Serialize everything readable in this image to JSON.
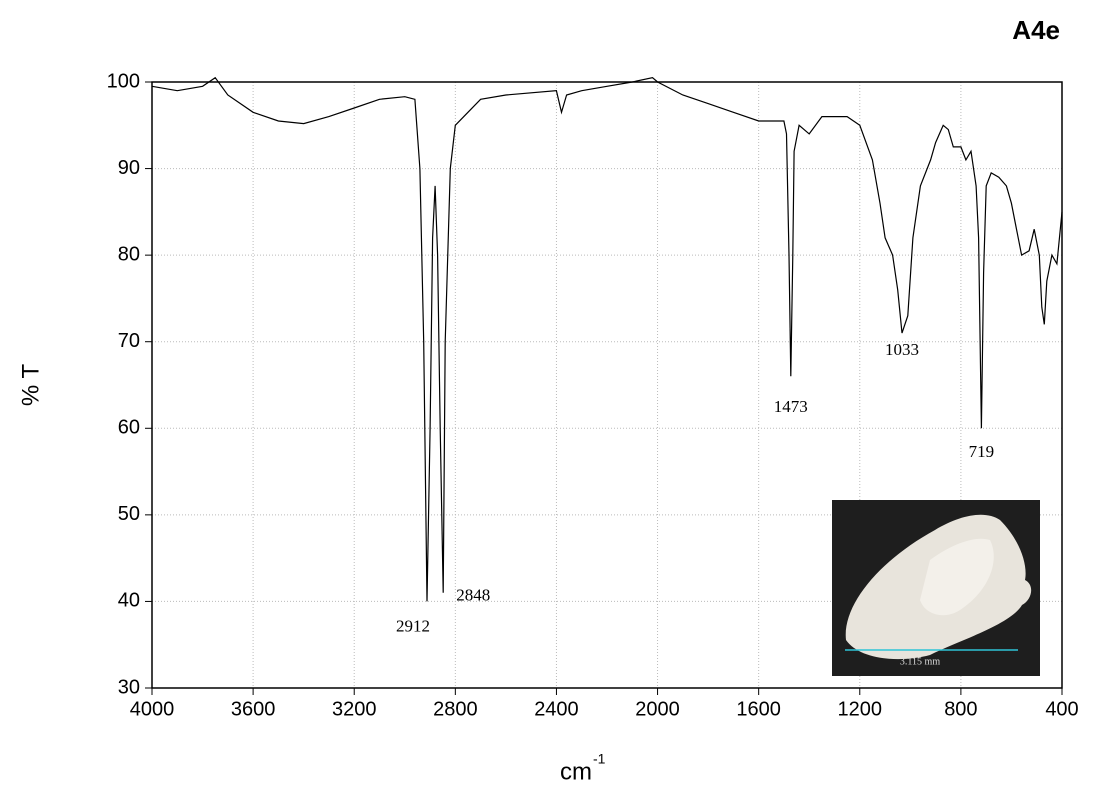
{
  "chart_data": {
    "type": "line",
    "title": "A4e",
    "y_label": "% T",
    "x_label": "cm",
    "x_label_superscript": "-1",
    "xlim": [
      4000,
      400
    ],
    "ylim": [
      30,
      100
    ],
    "xticks": [
      4000,
      3600,
      3200,
      2800,
      2400,
      2000,
      1600,
      1200,
      800,
      400
    ],
    "yticks": [
      30,
      40,
      50,
      60,
      70,
      80,
      90,
      100
    ],
    "grid": true,
    "x": [
      4000,
      3900,
      3800,
      3750,
      3700,
      3600,
      3500,
      3400,
      3300,
      3200,
      3100,
      3000,
      2960,
      2940,
      2925,
      2912,
      2900,
      2890,
      2880,
      2870,
      2860,
      2848,
      2840,
      2820,
      2800,
      2700,
      2600,
      2400,
      2380,
      2360,
      2300,
      2200,
      2100,
      2020,
      2000,
      1900,
      1800,
      1700,
      1600,
      1500,
      1490,
      1480,
      1473,
      1465,
      1460,
      1440,
      1400,
      1350,
      1300,
      1250,
      1200,
      1150,
      1120,
      1100,
      1070,
      1050,
      1033,
      1010,
      990,
      960,
      920,
      900,
      870,
      850,
      830,
      800,
      780,
      760,
      740,
      730,
      719,
      710,
      700,
      680,
      650,
      620,
      600,
      580,
      560,
      530,
      510,
      490,
      480,
      470,
      460,
      440,
      420,
      400
    ],
    "series": [
      {
        "name": "A4e",
        "color": "#000000",
        "values": [
          99.5,
          99,
          99.5,
          100.5,
          98.5,
          96.5,
          95.5,
          95.2,
          96,
          97,
          98,
          98.3,
          98,
          90,
          70,
          40,
          60,
          82,
          88,
          80,
          60,
          41,
          70,
          90,
          95,
          98,
          98.5,
          99,
          96.5,
          98.5,
          99,
          99.5,
          100,
          100.5,
          100,
          98.5,
          97.5,
          96.5,
          95.5,
          95.5,
          94,
          80,
          66,
          80,
          92,
          95,
          94,
          96,
          96,
          96,
          95,
          91,
          86,
          82,
          80,
          76,
          71,
          73,
          82,
          88,
          91,
          93,
          95,
          94.5,
          92.5,
          92.5,
          91,
          92,
          88,
          82,
          60,
          78,
          88,
          89.5,
          89,
          88,
          86,
          83,
          80,
          80.5,
          83,
          80,
          74,
          72,
          77,
          80,
          79,
          85
        ]
      }
    ],
    "peaks": [
      2912,
      2848,
      1473,
      1033,
      719
    ]
  },
  "inset": {
    "scale_label": "3.115 mm"
  }
}
